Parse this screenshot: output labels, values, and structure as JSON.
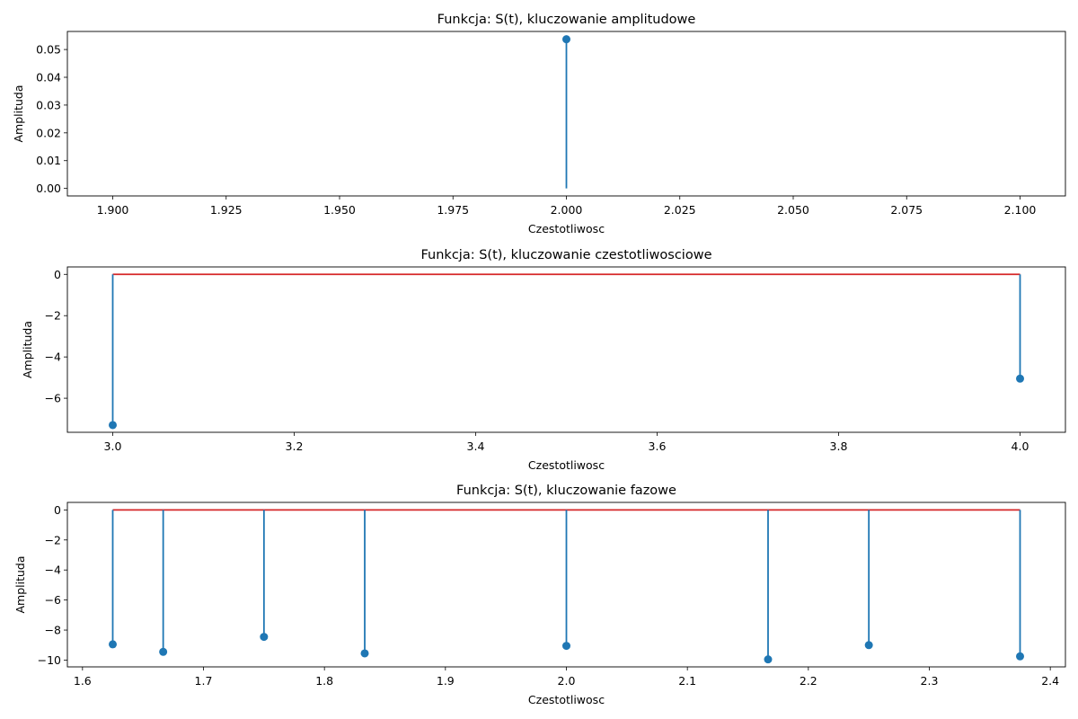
{
  "chart_data": [
    {
      "type": "stem",
      "title": "Funkcja: S(t), kluczowanie amplitudowe",
      "xlabel": "Czestotliwosc",
      "ylabel": "Amplituda",
      "xlim": [
        1.89,
        2.11
      ],
      "ylim": [
        -0.0027,
        0.0565
      ],
      "xticks": [
        1.9,
        1.925,
        1.95,
        1.975,
        2.0,
        2.025,
        2.05,
        2.075,
        2.1
      ],
      "xtick_labels": [
        "1.900",
        "1.925",
        "1.950",
        "1.975",
        "2.000",
        "2.025",
        "2.050",
        "2.075",
        "2.100"
      ],
      "yticks": [
        0.0,
        0.01,
        0.02,
        0.03,
        0.04,
        0.05
      ],
      "ytick_labels": [
        "0.00",
        "0.01",
        "0.02",
        "0.03",
        "0.04",
        "0.05"
      ],
      "x": [
        2.0
      ],
      "y": [
        0.0537
      ],
      "baseline": false,
      "colors": {
        "stem": "#1f77b4",
        "baseline": "#d62728"
      }
    },
    {
      "type": "stem",
      "title": "Funkcja: S(t), kluczowanie czestotliwosciowe",
      "xlabel": "Czestotliwosc",
      "ylabel": "Amplituda",
      "xlim": [
        2.95,
        4.05
      ],
      "ylim": [
        -7.65,
        0.36
      ],
      "xticks": [
        3.0,
        3.2,
        3.4,
        3.6,
        3.8,
        4.0
      ],
      "xtick_labels": [
        "3.0",
        "3.2",
        "3.4",
        "3.6",
        "3.8",
        "4.0"
      ],
      "yticks": [
        0,
        -2,
        -4,
        -6
      ],
      "ytick_labels": [
        "0",
        "−2",
        "−4",
        "−6"
      ],
      "x": [
        3.0,
        4.0
      ],
      "y": [
        -7.3,
        -5.05
      ],
      "baseline": true,
      "colors": {
        "stem": "#1f77b4",
        "baseline": "#d62728"
      }
    },
    {
      "type": "stem",
      "title": "Funkcja: S(t), kluczowanie fazowe",
      "xlabel": "Czestotliwosc",
      "ylabel": "Amplituda",
      "xlim": [
        1.5875,
        2.4125
      ],
      "ylim": [
        -10.45,
        0.5
      ],
      "xticks": [
        1.6,
        1.7,
        1.8,
        1.9,
        2.0,
        2.1,
        2.2,
        2.3,
        2.4
      ],
      "xtick_labels": [
        "1.6",
        "1.7",
        "1.8",
        "1.9",
        "2.0",
        "2.1",
        "2.2",
        "2.3",
        "2.4"
      ],
      "yticks": [
        0,
        -2,
        -4,
        -6,
        -8,
        -10
      ],
      "ytick_labels": [
        "0",
        "−2",
        "−4",
        "−6",
        "−8",
        "−10"
      ],
      "x": [
        1.625,
        1.6667,
        1.75,
        1.8333,
        2.0,
        2.1667,
        2.25,
        2.375
      ],
      "y": [
        -8.95,
        -9.45,
        -8.45,
        -9.55,
        -9.05,
        -9.95,
        -9.0,
        -9.75
      ],
      "baseline": true,
      "colors": {
        "stem": "#1f77b4",
        "baseline": "#d62728"
      }
    }
  ]
}
